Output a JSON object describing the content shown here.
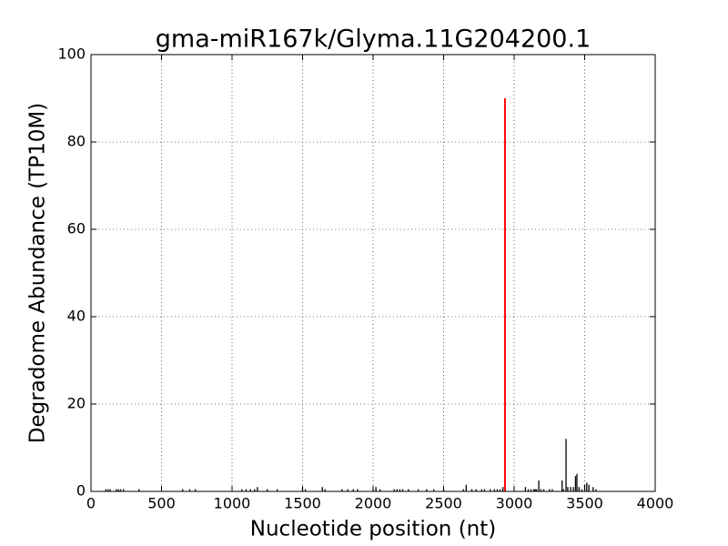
{
  "chart_data": {
    "type": "vlines",
    "title": "gma-miR167k/Glyma.11G204200.1",
    "xlabel": "Nucleotide position (nt)",
    "ylabel": "Degradome Abundance (TP10M)",
    "xlim": [
      0,
      4000
    ],
    "ylim": [
      0,
      100
    ],
    "xticks": [
      0,
      500,
      1000,
      1500,
      2000,
      2500,
      3000,
      3500,
      4000
    ],
    "yticks": [
      0,
      20,
      40,
      60,
      80,
      100
    ],
    "grid": true,
    "series": [
      {
        "color": "#000000",
        "x": [
          105,
          120,
          135,
          180,
          195,
          210,
          230,
          340,
          650,
          700,
          740,
          1070,
          1100,
          1130,
          1160,
          1180,
          1250,
          1320,
          1500,
          1520,
          1640,
          1660,
          1780,
          1820,
          1860,
          1890,
          2000,
          2020,
          2050,
          2150,
          2170,
          2190,
          2210,
          2250,
          2320,
          2380,
          2430,
          2500,
          2640,
          2660,
          2700,
          2730,
          2770,
          2790,
          2830,
          2860,
          2880,
          2900,
          2920,
          3080,
          3100,
          3120,
          3140,
          3150,
          3160,
          3175,
          3190,
          3210,
          3250,
          3270,
          3340,
          3350,
          3368,
          3380,
          3400,
          3420,
          3435,
          3445,
          3460,
          3480,
          3500,
          3515,
          3530,
          3560,
          3580
        ],
        "values": [
          0.5,
          0.5,
          0.5,
          0.5,
          0.5,
          0.5,
          0.5,
          0.5,
          0.5,
          0.5,
          0.5,
          0.5,
          0.5,
          0.5,
          0.5,
          1,
          0.5,
          0.5,
          1,
          0.5,
          1,
          0.5,
          0.5,
          0.5,
          0.5,
          0.5,
          0.5,
          1,
          0.5,
          0.5,
          0.5,
          0.5,
          0.5,
          0.5,
          0.5,
          0.5,
          0.5,
          0.5,
          0.5,
          1.5,
          0.5,
          0.5,
          0.5,
          0.5,
          0.5,
          0.5,
          0.5,
          0.5,
          1,
          1,
          0.5,
          0.5,
          0.5,
          0.5,
          0.5,
          2.5,
          0.5,
          0.5,
          0.5,
          0.5,
          2.5,
          0.5,
          12,
          1,
          1,
          1,
          3.5,
          4,
          1,
          0.5,
          1.5,
          2,
          1.5,
          1,
          0.5
        ]
      },
      {
        "color": "#ff0000",
        "x": [
          2935
        ],
        "values": [
          90
        ]
      }
    ]
  }
}
